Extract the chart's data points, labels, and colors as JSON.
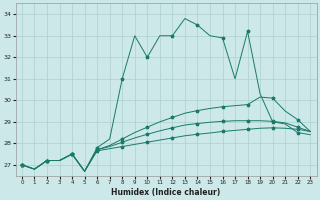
{
  "xlabel": "Humidex (Indice chaleur)",
  "xlim": [
    -0.5,
    23.5
  ],
  "ylim": [
    26.5,
    34.5
  ],
  "yticks": [
    27,
    28,
    29,
    30,
    31,
    32,
    33,
    34
  ],
  "xticks": [
    0,
    1,
    2,
    3,
    4,
    5,
    6,
    7,
    8,
    9,
    10,
    11,
    12,
    13,
    14,
    15,
    16,
    17,
    18,
    19,
    20,
    21,
    22,
    23
  ],
  "background_color": "#cce8e8",
  "line_color": "#1a7a6a",
  "grid_color": "#afd0d0",
  "y_jagged": [
    27.0,
    26.8,
    27.2,
    27.2,
    27.5,
    26.7,
    27.8,
    28.2,
    31.0,
    33.0,
    32.0,
    33.0,
    33.0,
    33.8,
    33.5,
    33.0,
    32.9,
    31.0,
    33.2,
    30.3,
    29.0,
    28.9,
    28.5,
    28.4
  ],
  "y_line1": [
    27.0,
    26.8,
    27.2,
    27.2,
    27.5,
    26.7,
    27.65,
    27.75,
    27.85,
    27.95,
    28.05,
    28.15,
    28.25,
    28.35,
    28.42,
    28.48,
    28.55,
    28.6,
    28.65,
    28.7,
    28.72,
    28.7,
    28.65,
    28.55
  ],
  "y_line2": [
    27.0,
    26.8,
    27.2,
    27.2,
    27.5,
    26.7,
    27.7,
    27.85,
    28.05,
    28.25,
    28.42,
    28.58,
    28.72,
    28.85,
    28.92,
    28.98,
    29.02,
    29.05,
    29.05,
    29.05,
    29.02,
    28.95,
    28.75,
    28.55
  ],
  "y_line3": [
    27.0,
    26.8,
    27.2,
    27.2,
    27.5,
    26.7,
    27.7,
    27.9,
    28.2,
    28.5,
    28.75,
    29.0,
    29.2,
    29.4,
    29.52,
    29.62,
    29.7,
    29.75,
    29.8,
    30.15,
    30.1,
    29.5,
    29.1,
    28.55
  ]
}
